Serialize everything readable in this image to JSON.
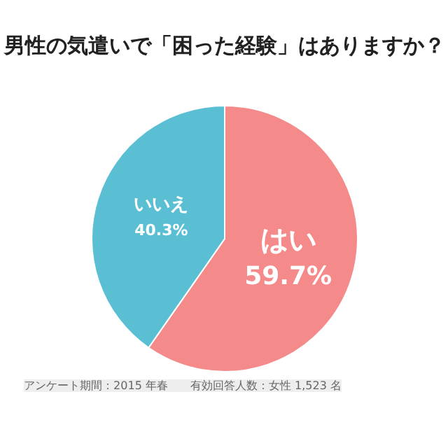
{
  "chart_data": {
    "type": "pie",
    "title": "男性の気遣いで「困った経験」はありますか？",
    "categories": [
      "はい",
      "いいえ"
    ],
    "values": [
      59.7,
      40.3
    ],
    "colors": [
      "#f48a8a",
      "#5bbfd4"
    ],
    "value_labels": [
      "59.7%",
      "40.3%"
    ],
    "annotations": [
      "アンケート期間：2015 年春　　有効回答人数：女性 1,523 名"
    ]
  }
}
